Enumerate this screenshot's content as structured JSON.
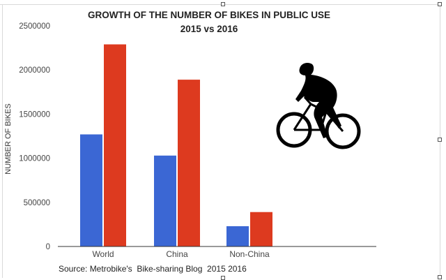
{
  "chart_data": {
    "type": "bar",
    "title": "GROWTH OF THE NUMBER OF BIKES IN PUBLIC USE",
    "subtitle": "2015 vs 2016",
    "xlabel": "",
    "ylabel": "NUMBER OF BIKES",
    "categories": [
      "World",
      "China",
      "Non-China"
    ],
    "series": [
      {
        "values": [
          1270000,
          1030000,
          230000
        ]
      },
      {
        "values": [
          2290000,
          1890000,
          390000
        ]
      }
    ],
    "ylim": [
      0,
      2500000
    ],
    "yticks": [
      0,
      500000,
      1000000,
      1500000,
      2000000,
      2500000
    ],
    "ytick_labels": [
      "0",
      "500000",
      "1000000",
      "1500000",
      "2000000",
      "2500000"
    ],
    "grid": false,
    "legend": "none"
  },
  "colors": {
    "series_2015": "#3b67d4",
    "series_2016": "#dd3a1f",
    "axis": "#333333"
  },
  "icons": {
    "illustration": "cyclist-silhouette-icon"
  },
  "source_text": "Source: Metrobike's  Bike-sharing Blog  2015 2016"
}
